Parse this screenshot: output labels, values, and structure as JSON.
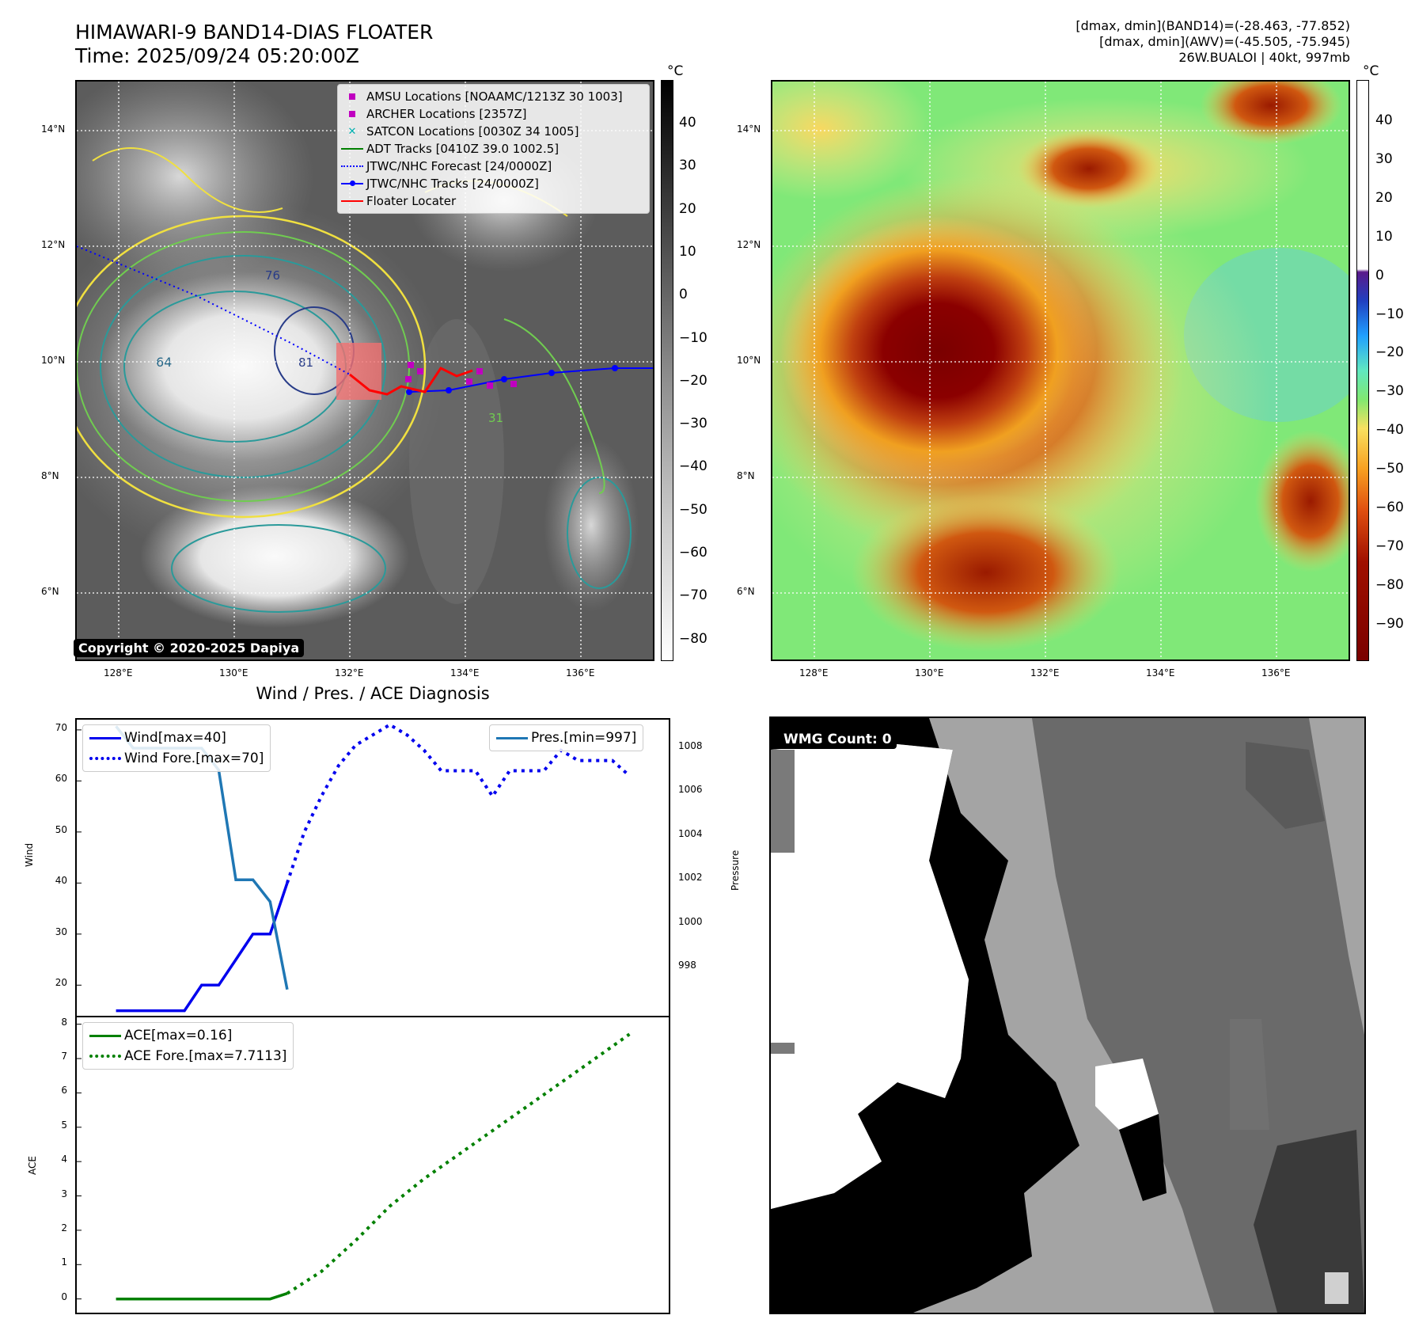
{
  "header": {
    "title_line1": "HIMAWARI-9 BAND14-DIAS FLOATER",
    "title_line2": "Time: 2025/09/24 05:20:00Z",
    "info_line1": "[dmax, dmin](BAND14)=(-28.463, -77.852)",
    "info_line2": "[dmax, dmin](AWV)=(-45.505, -75.945)",
    "info_line3": "26W.BUALOI | 40kt, 997mb"
  },
  "map": {
    "lat_ticks": [
      "14°N",
      "12°N",
      "10°N",
      "8°N",
      "6°N"
    ],
    "lon_ticks": [
      "128°E",
      "130°E",
      "132°E",
      "134°E",
      "136°E"
    ],
    "copyright": "Copyright © 2020-2025 Dapiya",
    "legend": [
      {
        "label": "AMSU Locations [NOAAMC/1213Z 30 1003]",
        "symbol": "square",
        "color": "#c000c0"
      },
      {
        "label": "ARCHER Locations [2357Z]",
        "symbol": "square",
        "color": "#c000c0"
      },
      {
        "label": "SATCON Locations [0030Z 34 1005]",
        "symbol": "x",
        "color": "#00b0b0"
      },
      {
        "label": "ADT Tracks [0410Z 39.0 1002.5]",
        "symbol": "line",
        "color": "#008000"
      },
      {
        "label": "JTWC/NHC Forecast [24/0000Z]",
        "symbol": "dotted",
        "color": "#0000ff"
      },
      {
        "label": "JTWC/NHC Tracks [24/0000Z]",
        "symbol": "line-dot",
        "color": "#0000ff"
      },
      {
        "label": "Floater Locater",
        "symbol": "line",
        "color": "#ff0000"
      }
    ],
    "contour_labels": [
      "64",
      "76",
      "81",
      "31"
    ]
  },
  "colorbar_gray": {
    "unit": "°C",
    "ticks": [
      "40",
      "30",
      "20",
      "10",
      "0",
      "−10",
      "−20",
      "−30",
      "−40",
      "−50",
      "−60",
      "−70",
      "−80"
    ]
  },
  "colorbar_color": {
    "unit": "°C",
    "ticks": [
      "40",
      "30",
      "20",
      "10",
      "0",
      "−10",
      "−20",
      "−30",
      "−40",
      "−50",
      "−60",
      "−70",
      "−80",
      "−90"
    ]
  },
  "wmg": {
    "label": "WMG Count: 0"
  },
  "chart_data": [
    {
      "type": "line",
      "title": "Wind / Pres. / ACE Diagnosis",
      "ylabel": "Wind",
      "y2label": "Pressure",
      "ylim": [
        14,
        72
      ],
      "y2lim": [
        995.8,
        1009.3
      ],
      "yticks": [
        20,
        30,
        40,
        50,
        60,
        70
      ],
      "y2ticks": [
        998,
        1000,
        1002,
        1004,
        1006,
        1008
      ],
      "series": [
        {
          "name": "Wind[max=40]",
          "style": "solid",
          "color": "#0000ee",
          "axis": "left",
          "x": [
            0,
            1,
            2,
            3,
            4,
            5,
            6,
            7,
            8,
            9,
            10
          ],
          "values": [
            15,
            15,
            15,
            15,
            15,
            20,
            20,
            25,
            30,
            30,
            40
          ]
        },
        {
          "name": "Wind Fore.[max=70]",
          "style": "dotted",
          "color": "#0000ee",
          "axis": "left",
          "x": [
            10,
            11,
            12,
            13,
            14,
            15,
            16,
            17,
            18,
            19,
            20,
            21,
            22,
            23,
            24,
            25,
            26,
            27,
            28,
            29,
            30
          ],
          "values": [
            40,
            50,
            57,
            63,
            67,
            69,
            71,
            69,
            66,
            62,
            62,
            62,
            57,
            62,
            62,
            62,
            66,
            64,
            64,
            64,
            61
          ]
        },
        {
          "name": "Pres.[min=997]",
          "style": "solid",
          "color": "#1f77b4",
          "axis": "right",
          "x": [
            0,
            1,
            2,
            3,
            4,
            5,
            6,
            7,
            8,
            9,
            10
          ],
          "values": [
            1009,
            1008,
            1008,
            1008,
            1008,
            1008,
            1007,
            1002,
            1002,
            1001,
            997
          ]
        }
      ]
    },
    {
      "type": "line",
      "ylabel": "ACE",
      "ylim": [
        -0.4,
        8.2
      ],
      "yticks": [
        0,
        1,
        2,
        3,
        4,
        5,
        6,
        7,
        8
      ],
      "series": [
        {
          "name": "ACE[max=0.16]",
          "style": "solid",
          "color": "#008000",
          "x": [
            0,
            1,
            2,
            3,
            4,
            5,
            6,
            7,
            8,
            9,
            10
          ],
          "values": [
            0,
            0,
            0,
            0,
            0,
            0,
            0,
            0,
            0,
            0,
            0.16
          ]
        },
        {
          "name": "ACE Fore.[max=7.7113]",
          "style": "dotted",
          "color": "#008000",
          "x": [
            10,
            12,
            14,
            16,
            18,
            20,
            22,
            24,
            26,
            28,
            30
          ],
          "values": [
            0.16,
            0.8,
            1.7,
            2.7,
            3.5,
            4.2,
            4.9,
            5.6,
            6.3,
            7.0,
            7.71
          ]
        }
      ]
    }
  ]
}
